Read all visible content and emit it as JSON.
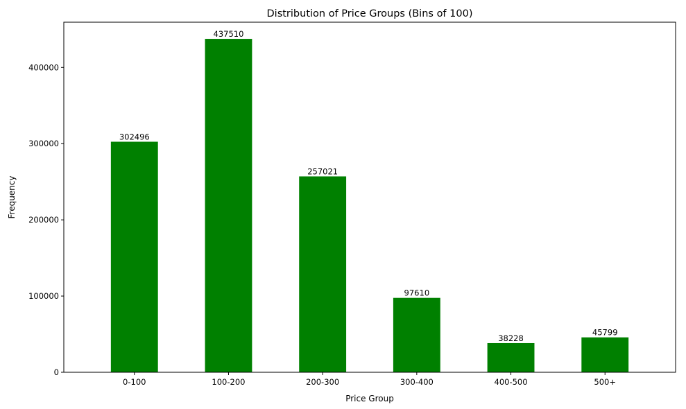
{
  "chart_data": {
    "type": "bar",
    "title": "Distribution of Price Groups (Bins of 100)",
    "xlabel": "Price Group",
    "ylabel": "Frequency",
    "categories": [
      "0-100",
      "100-200",
      "200-300",
      "300-400",
      "400-500",
      "500+"
    ],
    "values": [
      302496,
      437510,
      257021,
      97610,
      38228,
      45799
    ],
    "data_labels": [
      "302496",
      "437510",
      "257021",
      "97610",
      "38228",
      "45799"
    ],
    "ylim": [
      0,
      459386
    ],
    "yticks": [
      0,
      100000,
      200000,
      300000,
      400000
    ],
    "ytick_labels": [
      "0",
      "100000",
      "200000",
      "300000",
      "400000"
    ],
    "bar_color": "#008000",
    "grid": false,
    "legend": "none"
  }
}
